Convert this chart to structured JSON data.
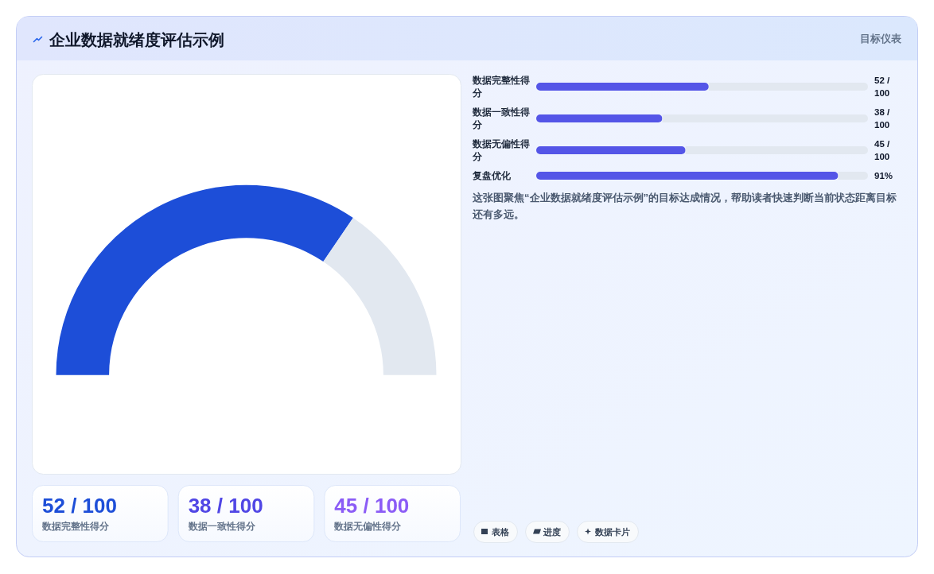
{
  "chart_data": [
    {
      "type": "donut",
      "title": "企业数据就绪度评估示例",
      "categories": [
        null,
        null
      ],
      "values": [
        69,
        31
      ],
      "colors": [
        "#1d4ed8",
        "#e2e8f0"
      ]
    },
    {
      "type": "bar",
      "orientation": "horizontal",
      "stacked": true,
      "subtitle": "目标仪表",
      "categories": [
        "数据完整性得分",
        "数据一致性得分",
        "数据无偏性得分",
        "复盘优化"
      ],
      "xlim": [
        0,
        100
      ],
      "series": [
        {
          "color": "#5455e7",
          "values": [
            52,
            38,
            45,
            91
          ],
          "value_labels": [
            "52 / 100",
            "38 / 100",
            "45 / 100",
            "91%"
          ]
        },
        {
          "color": "#e2e8f0",
          "values": [
            48,
            62,
            55,
            9
          ]
        }
      ],
      "annotations": [
        "这张图聚焦“企业数据就绪度评估示例”的目标达成情况，帮助读者快速判断当前状态距离目标还有多远。"
      ]
    },
    {
      "type": "other",
      "annotations": [
        "52 / 100",
        "数据完整性得分",
        "38 / 100",
        "数据一致性得分",
        "45 / 100",
        "数据无偏性得分"
      ]
    },
    {
      "type": "other",
      "annotations": [
        "表格",
        "进度",
        "数据卡片"
      ]
    }
  ]
}
